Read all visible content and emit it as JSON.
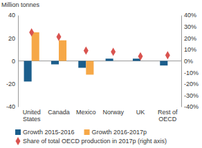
{
  "chart_data": {
    "type": "bar",
    "y_label": "Million tonnes",
    "categories": [
      "United States",
      "Canada",
      "Mexico",
      "Norway",
      "UK",
      "Rest of OECD"
    ],
    "series": [
      {
        "name": "Growth 2015-2016",
        "color": "#1b5e8c",
        "values": [
          -18,
          -3,
          -6,
          2,
          2,
          -4
        ]
      },
      {
        "name": "Growth 2016-2017p",
        "color": "#f6a847",
        "values": [
          25,
          18,
          -12,
          0,
          0,
          0
        ]
      },
      {
        "name": "Share of total OECD production in 2017p (right axis)",
        "type": "scatter",
        "marker": "diamond",
        "axis": "y2",
        "color": "#d9534f",
        "values": [
          25,
          21,
          9,
          8,
          4,
          5
        ]
      }
    ],
    "ylim": [
      -40,
      40
    ],
    "yticks": [
      -40,
      -20,
      0,
      20,
      40
    ],
    "y2lim": [
      -40,
      40
    ],
    "y2ticks": [
      {
        "value": -40,
        "label": "-40%"
      },
      {
        "value": -30,
        "label": "-30%"
      },
      {
        "value": -20,
        "label": "-20%"
      },
      {
        "value": -10,
        "label": "-10%"
      },
      {
        "value": 0,
        "label": "0%"
      },
      {
        "value": 10,
        "label": "10%"
      },
      {
        "value": 20,
        "label": "20%"
      },
      {
        "value": 30,
        "label": "30%"
      },
      {
        "value": 40,
        "label": "40%"
      }
    ],
    "grid": false,
    "legend": "bottom"
  }
}
